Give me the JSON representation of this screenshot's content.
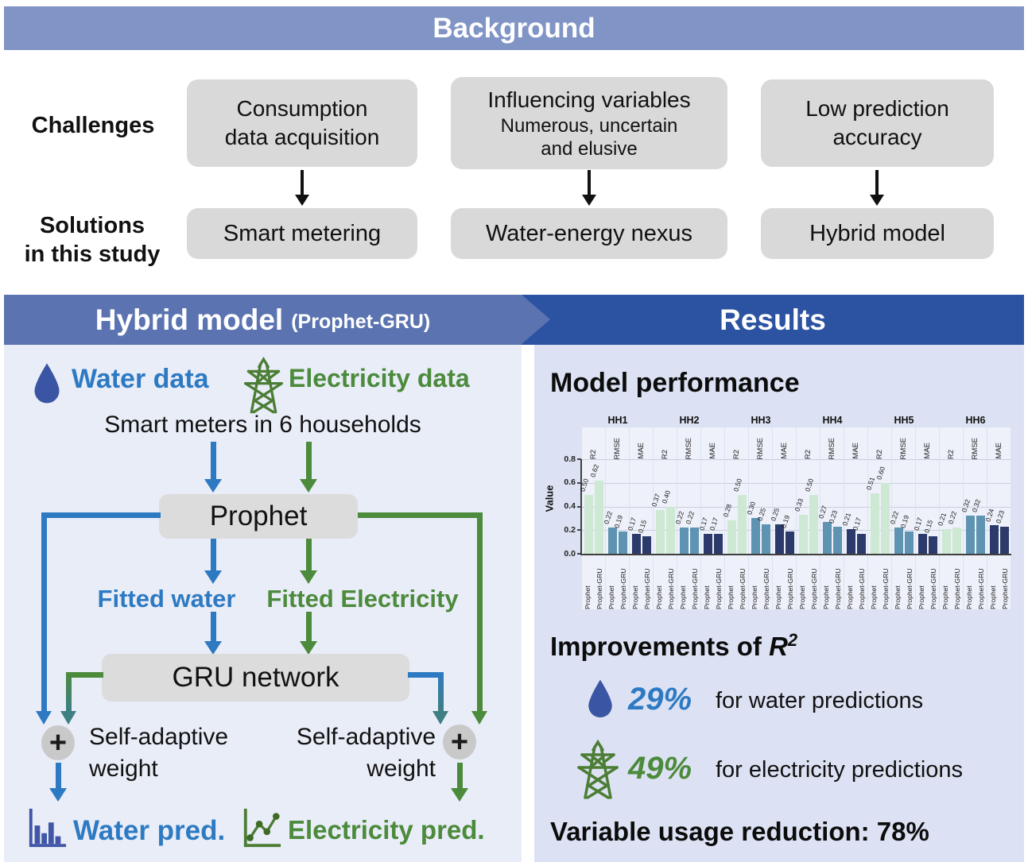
{
  "background": {
    "title": "Background",
    "challenges_label": "Challenges",
    "solutions_label": [
      "Solutions",
      "in this study"
    ],
    "challenges": [
      {
        "lines": [
          "Consumption",
          "data acquisition"
        ],
        "sub": []
      },
      {
        "lines": [
          "Influencing variables"
        ],
        "sub": [
          "Numerous, uncertain",
          "and elusive"
        ]
      },
      {
        "lines": [
          "Low prediction",
          "accuracy"
        ],
        "sub": []
      }
    ],
    "solutions": [
      "Smart metering",
      "Water-energy nexus",
      "Hybrid model"
    ]
  },
  "hybrid": {
    "title": "Hybrid model",
    "subtitle": "(Prophet-GRU)",
    "water_data": "Water data",
    "electricity_data": "Electricity data",
    "smart_meters": "Smart meters in 6 households",
    "prophet": "Prophet",
    "fitted_water": "Fitted water",
    "fitted_electricity": "Fitted Electricity",
    "gru": "GRU network",
    "plus_sign": "+",
    "self_adaptive": [
      "Self-adaptive",
      "weight"
    ],
    "water_pred": "Water pred.",
    "electricity_pred": "Electricity pred."
  },
  "results": {
    "title": "Results",
    "model_performance": "Model performance",
    "improvements_prefix": "Improvements of ",
    "r_symbol": "R",
    "r_sup": "2",
    "water_row": {
      "pct": "29%",
      "text": "for water predictions"
    },
    "electricity_row": {
      "pct": "49%",
      "text": "for electricity predictions"
    },
    "variable_reduction": "Variable usage reduction: 78%"
  },
  "chart_data": {
    "type": "bar",
    "title": "",
    "xlabel": "",
    "ylabel": "Value",
    "ylim": [
      0,
      0.8
    ],
    "yticks": [
      "0.8",
      "0.6",
      "0.4",
      "0.2",
      "0.0"
    ],
    "grid": true,
    "group_labels": [
      "HH1",
      "HH2",
      "HH3",
      "HH4",
      "HH5",
      "HH6"
    ],
    "metrics": [
      "R2",
      "RMSE",
      "MAE"
    ],
    "series_labels": [
      "Prophet",
      "Prophet-GRU"
    ],
    "colors": {
      "R2": "#cde9d3",
      "RMSE": "#5e93b2",
      "MAE": "#2b3a6a"
    },
    "values": {
      "HH1": {
        "R2": [
          0.5,
          0.62
        ],
        "RMSE": [
          0.22,
          0.19
        ],
        "MAE": [
          0.17,
          0.15
        ]
      },
      "HH2": {
        "R2": [
          0.37,
          0.4
        ],
        "RMSE": [
          0.22,
          0.22
        ],
        "MAE": [
          0.17,
          0.17
        ]
      },
      "HH3": {
        "R2": [
          0.28,
          0.5
        ],
        "RMSE": [
          0.3,
          0.25
        ],
        "MAE": [
          0.25,
          0.19
        ]
      },
      "HH4": {
        "R2": [
          0.33,
          0.5
        ],
        "RMSE": [
          0.27,
          0.23
        ],
        "MAE": [
          0.21,
          0.17
        ]
      },
      "HH5": {
        "R2": [
          0.51,
          0.6
        ],
        "RMSE": [
          0.22,
          0.19
        ],
        "MAE": [
          0.17,
          0.15
        ]
      },
      "HH6": {
        "R2": [
          0.21,
          0.22
        ],
        "RMSE": [
          0.32,
          0.32
        ],
        "MAE": [
          0.24,
          0.23
        ]
      }
    }
  },
  "colors": {
    "band_background": "#8095c5",
    "band_hybrid": "#5b74b1",
    "band_results": "#2c53a2",
    "panel_left_bg": "#e9edf8",
    "panel_right_bg": "#dce2f3",
    "gray_box": "#d9d9d9",
    "blue": "#2e7ac2",
    "green": "#4c8a3c",
    "droplet_blue": "#3b55a5",
    "icon_indigo": "#4156a6",
    "teal_arrow": "#3d7f83"
  },
  "icons": {
    "water": "water-droplet-icon",
    "electricity": "power-pylon-icon",
    "water_pred": "bar-chart-icon",
    "electricity_pred": "line-chart-icon"
  }
}
